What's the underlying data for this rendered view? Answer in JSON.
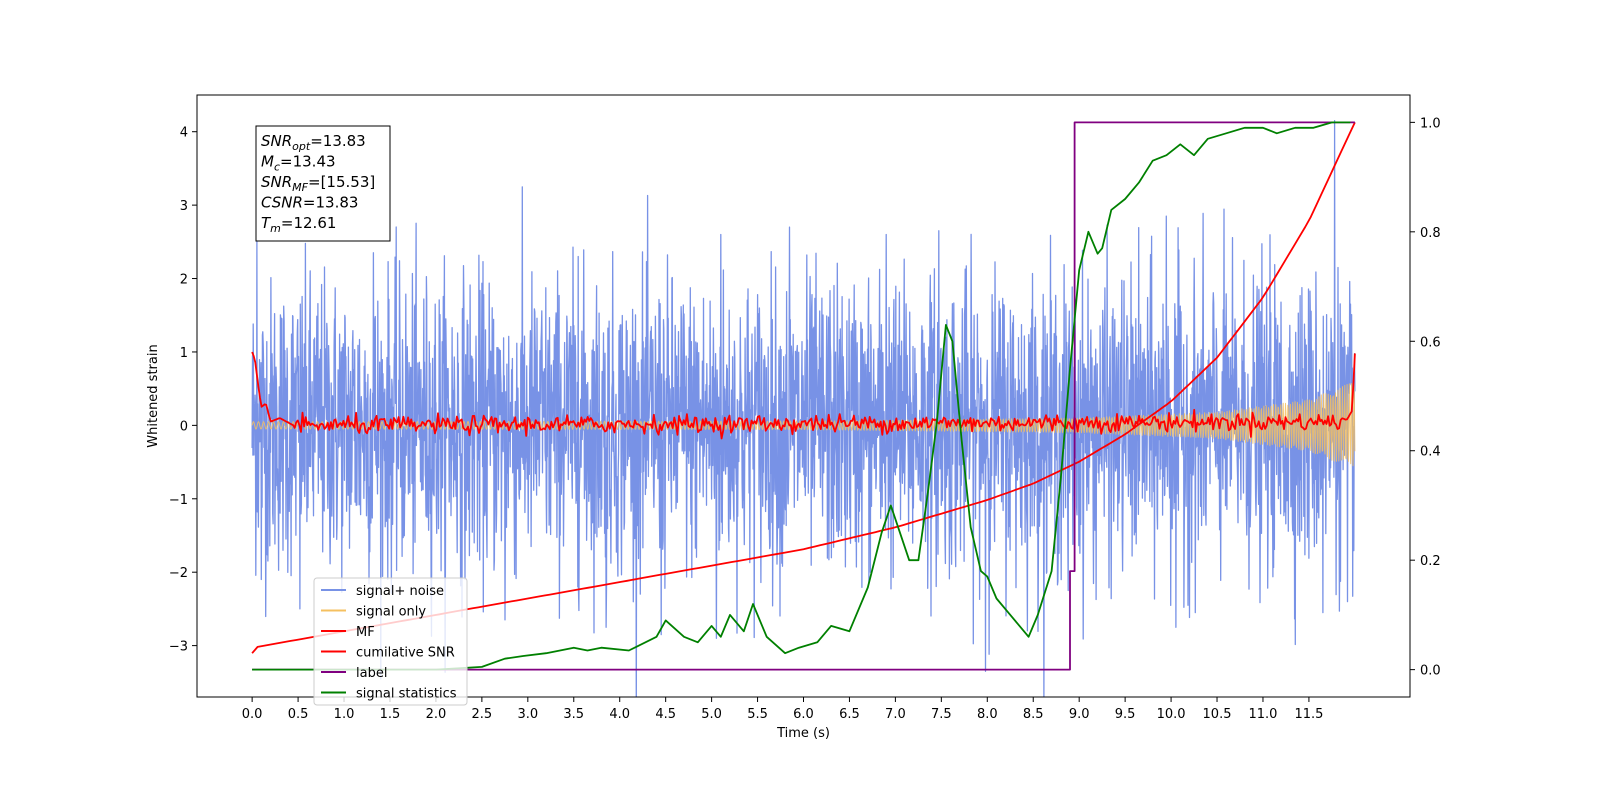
{
  "chart_data": {
    "type": "line",
    "title": "",
    "xlabel": "Time (s)",
    "ylabel": "Whitened strain",
    "y2label": "",
    "xlim": [
      -0.6,
      12.6
    ],
    "ylim": [
      -3.7,
      4.5
    ],
    "y2lim": [
      -0.05,
      1.05
    ],
    "x_ticks": [
      0.0,
      0.5,
      1.0,
      1.5,
      2.0,
      2.5,
      3.0,
      3.5,
      4.0,
      4.5,
      5.0,
      5.5,
      6.0,
      6.5,
      7.0,
      7.5,
      8.0,
      8.5,
      9.0,
      9.5,
      10.0,
      10.5,
      11.0,
      11.5
    ],
    "x_tick_labels": [
      "0.0",
      "0.5",
      "1.0",
      "1.5",
      "2.0",
      "2.5",
      "3.0",
      "3.5",
      "4.0",
      "4.5",
      "5.0",
      "5.5",
      "6.0",
      "6.5",
      "7.0",
      "7.5",
      "8.0",
      "8.5",
      "9.0",
      "9.5",
      "10.0",
      "10.5",
      "11.0",
      "11.5"
    ],
    "y_ticks": [
      -3,
      -2,
      -1,
      0,
      1,
      2,
      3,
      4
    ],
    "y_tick_labels": [
      "−3",
      "−2",
      "−1",
      "0",
      "1",
      "2",
      "3",
      "4"
    ],
    "y2_ticks": [
      0.0,
      0.2,
      0.4,
      0.6,
      0.8,
      1.0
    ],
    "y2_tick_labels": [
      "0.0",
      "0.2",
      "0.4",
      "0.6",
      "0.8",
      "1.0"
    ],
    "grid": false,
    "legend_position": "lower-left",
    "annotation": {
      "lines": [
        {
          "sym": "SNR",
          "sub": "opt",
          "value": "=13.83"
        },
        {
          "sym": "M",
          "sub": "c",
          "value": "=13.43"
        },
        {
          "sym": "SNR",
          "sub": "MF",
          "value": "=[15.53]"
        },
        {
          "sym": "CSNR",
          "sub": "",
          "value": "=13.83"
        },
        {
          "sym": "T",
          "sub": "m",
          "value": "=12.61"
        }
      ]
    },
    "series": [
      {
        "name": "signal+ noise",
        "axis": "left",
        "color": "#7892e6",
        "kind": "noise",
        "x_range": [
          0.0,
          12.0
        ],
        "amplitude_envelope": {
          "x": [
            0.0,
            12.0
          ],
          "lower": [
            -1.6,
            -1.6
          ],
          "upper": [
            1.6,
            1.6
          ]
        },
        "peaks": [
          {
            "x": 0.05,
            "y": 2.5
          },
          {
            "x": 0.1,
            "y": -2.1
          },
          {
            "x": 0.52,
            "y": -2.5
          },
          {
            "x": 1.32,
            "y": 2.35
          },
          {
            "x": 2.75,
            "y": -2.65
          },
          {
            "x": 3.55,
            "y": 2.3
          },
          {
            "x": 3.85,
            "y": -2.75
          },
          {
            "x": 4.45,
            "y": -2.85
          },
          {
            "x": 5.05,
            "y": -2.9
          },
          {
            "x": 5.1,
            "y": 2.6
          },
          {
            "x": 5.85,
            "y": 2.7
          },
          {
            "x": 6.9,
            "y": 2.6
          },
          {
            "x": 7.47,
            "y": 2.65
          },
          {
            "x": 7.98,
            "y": -3.35
          },
          {
            "x": 8.88,
            "y": -2.25
          },
          {
            "x": 9.95,
            "y": 2.85
          },
          {
            "x": 10.05,
            "y": -2.75
          },
          {
            "x": 11.65,
            "y": -2.55
          },
          {
            "x": 11.78,
            "y": 4.15
          },
          {
            "x": 11.92,
            "y": -2.4
          }
        ]
      },
      {
        "name": "signal only",
        "axis": "left",
        "color": "#f5c060",
        "kind": "chirp",
        "x_range": [
          0.0,
          12.0
        ],
        "amplitude_envelope": {
          "x": [
            0.0,
            6.0,
            9.0,
            10.5,
            11.5,
            12.0
          ],
          "amp": [
            0.05,
            0.06,
            0.1,
            0.18,
            0.35,
            0.6
          ]
        }
      },
      {
        "name": "MF",
        "axis": "left",
        "color": "#ff0000",
        "kind": "noise",
        "x_range": [
          0.0,
          12.0
        ],
        "points": [
          [
            0.0,
            1.0
          ],
          [
            0.03,
            0.9
          ],
          [
            0.06,
            0.6
          ],
          [
            0.1,
            0.25
          ],
          [
            0.15,
            0.3
          ],
          [
            0.2,
            0.05
          ],
          [
            0.3,
            0.1
          ],
          [
            0.45,
            0.0
          ],
          [
            11.9,
            0.05
          ],
          [
            11.97,
            0.2
          ],
          [
            12.0,
            0.98
          ]
        ],
        "noise_amplitude": 0.06
      },
      {
        "name": "cumilative SNR",
        "axis": "right",
        "color": "#ff0000",
        "kind": "line",
        "x": [
          0.0,
          0.01,
          1.0,
          2.0,
          3.0,
          4.0,
          5.0,
          6.0,
          7.0,
          7.5,
          8.0,
          8.5,
          9.0,
          9.5,
          10.0,
          10.5,
          11.0,
          11.5,
          12.0
        ],
        "y": [
          0.03,
          0.04,
          0.07,
          0.1,
          0.13,
          0.16,
          0.19,
          0.22,
          0.26,
          0.285,
          0.31,
          0.34,
          0.38,
          0.43,
          0.49,
          0.57,
          0.68,
          0.82,
          1.0
        ]
      },
      {
        "name": "label",
        "axis": "right",
        "color": "#800080",
        "kind": "line",
        "x": [
          0.0,
          8.9,
          8.9,
          8.95,
          8.95,
          12.0
        ],
        "y": [
          0.0,
          0.0,
          0.18,
          0.18,
          1.0,
          1.0
        ]
      },
      {
        "name": "signal statistics",
        "axis": "right",
        "color": "#008000",
        "kind": "line",
        "x": [
          0.0,
          0.5,
          1.0,
          1.5,
          2.0,
          2.5,
          2.75,
          2.95,
          3.2,
          3.5,
          3.65,
          3.8,
          4.1,
          4.4,
          4.5,
          4.7,
          4.85,
          5.0,
          5.1,
          5.2,
          5.35,
          5.45,
          5.6,
          5.8,
          5.95,
          6.15,
          6.3,
          6.5,
          6.7,
          6.85,
          6.95,
          7.05,
          7.15,
          7.25,
          7.35,
          7.45,
          7.55,
          7.62,
          7.72,
          7.82,
          7.93,
          8.0,
          8.1,
          8.25,
          8.45,
          8.55,
          8.7,
          8.8,
          8.9,
          9.0,
          9.1,
          9.2,
          9.25,
          9.35,
          9.5,
          9.65,
          9.8,
          9.95,
          10.1,
          10.25,
          10.4,
          10.6,
          10.8,
          11.0,
          11.15,
          11.35,
          11.55,
          11.75,
          11.95
        ],
        "y": [
          0.0,
          0.0,
          0.0,
          0.0,
          0.0,
          0.005,
          0.02,
          0.025,
          0.03,
          0.04,
          0.035,
          0.04,
          0.035,
          0.06,
          0.09,
          0.06,
          0.05,
          0.08,
          0.06,
          0.1,
          0.07,
          0.12,
          0.06,
          0.03,
          0.04,
          0.05,
          0.08,
          0.07,
          0.15,
          0.25,
          0.3,
          0.25,
          0.2,
          0.2,
          0.32,
          0.45,
          0.63,
          0.6,
          0.42,
          0.26,
          0.18,
          0.17,
          0.13,
          0.1,
          0.06,
          0.1,
          0.18,
          0.35,
          0.55,
          0.73,
          0.8,
          0.76,
          0.77,
          0.84,
          0.86,
          0.89,
          0.93,
          0.94,
          0.96,
          0.94,
          0.97,
          0.98,
          0.99,
          0.99,
          0.98,
          0.99,
          0.99,
          1.0,
          1.0
        ]
      }
    ]
  }
}
